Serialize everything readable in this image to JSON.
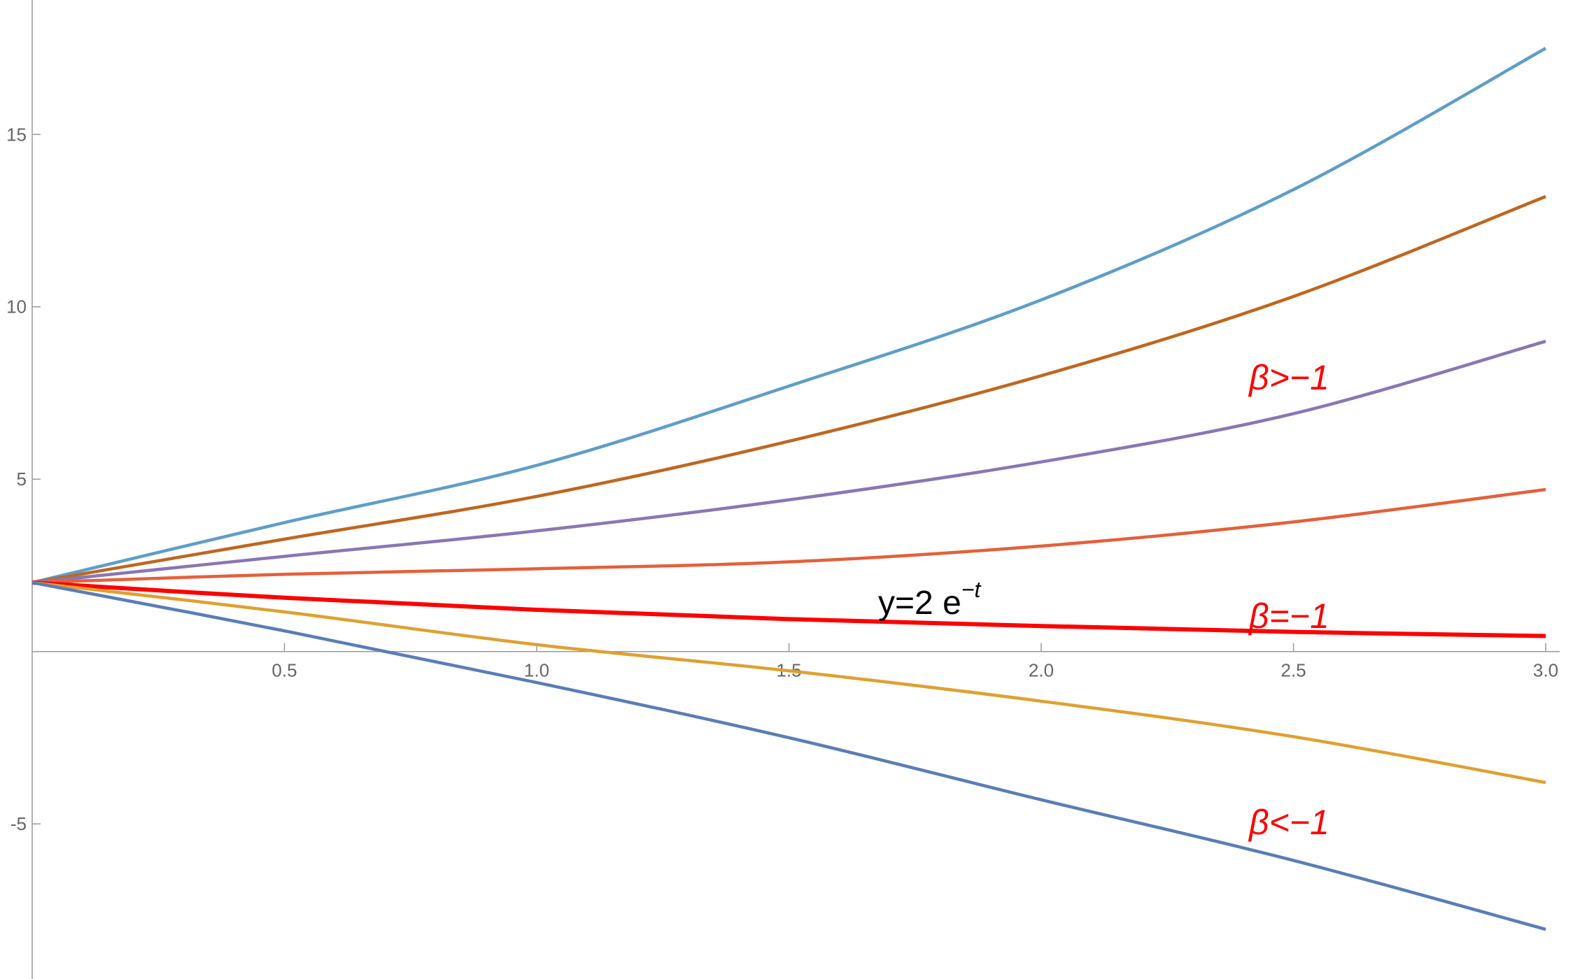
{
  "chart_data": {
    "type": "line",
    "x": [
      0,
      0.5,
      1,
      1.5,
      2,
      2.5,
      3
    ],
    "series": [
      {
        "color": "#5e9ec8",
        "values": [
          2,
          3.74,
          5.4,
          7.7,
          10.2,
          13.4,
          17.5
        ]
      },
      {
        "color": "#c0661f",
        "values": [
          2,
          3.26,
          4.5,
          6.1,
          8.0,
          10.3,
          13.2
        ]
      },
      {
        "color": "#8a76b4",
        "values": [
          2,
          2.76,
          3.5,
          4.4,
          5.5,
          6.9,
          9.0
        ]
      },
      {
        "color": "#e5603a",
        "values": [
          2,
          2.24,
          2.4,
          2.6,
          3.06,
          3.76,
          4.7
        ]
      },
      {
        "color": "#ff0000",
        "values": [
          2,
          1.56,
          1.21,
          0.94,
          0.74,
          0.57,
          0.45
        ]
      },
      {
        "color": "#e0a030",
        "values": [
          2,
          1.15,
          0.2,
          -0.56,
          -1.44,
          -2.47,
          -3.8
        ]
      },
      {
        "color": "#5a7db8",
        "values": [
          2,
          0.6,
          -0.9,
          -2.5,
          -4.3,
          -6.06,
          -8.06
        ]
      }
    ],
    "xlim": [
      0,
      3
    ],
    "ylim": [
      -9.5,
      18.9
    ],
    "xticks": [
      0.5,
      {
        "value": 1,
        "label": "1.0"
      },
      1.5,
      {
        "value": 2,
        "label": "2.0"
      },
      2.5,
      {
        "value": 3,
        "label": "3.0"
      }
    ],
    "yticks": [
      -5,
      5,
      10,
      15
    ],
    "annotations": [
      {
        "text": "β>−1"
      },
      {
        "text": "β=−1"
      },
      {
        "text": "β<−1"
      },
      {
        "text": "y=2 e",
        "sup": "−t"
      }
    ]
  }
}
